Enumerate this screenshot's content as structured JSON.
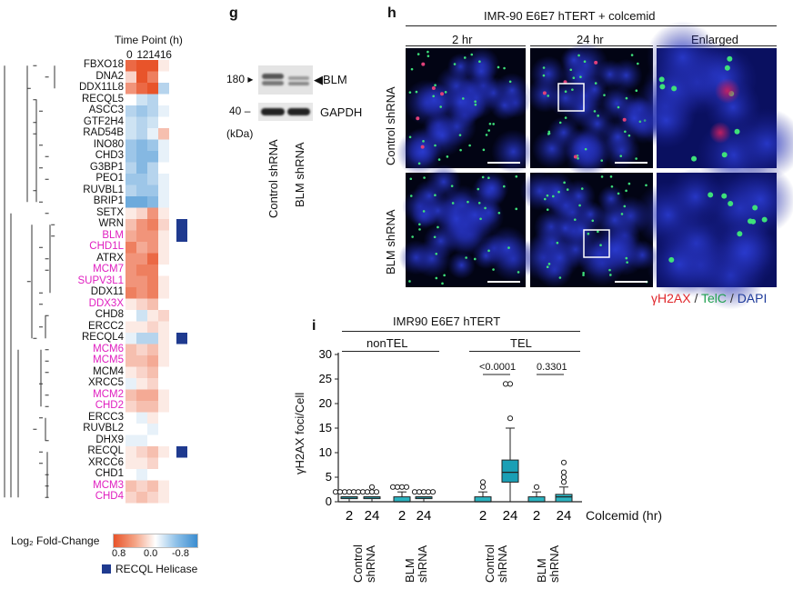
{
  "heatmap": {
    "title": "Time Point (h)",
    "timepoints": [
      "0",
      "12",
      "14",
      "16"
    ],
    "genes": [
      {
        "name": "FBXO18",
        "highlight": false,
        "recql": false
      },
      {
        "name": "DNA2",
        "highlight": false,
        "recql": false
      },
      {
        "name": "DDX11L8",
        "highlight": false,
        "recql": false
      },
      {
        "name": "RECQL5",
        "highlight": false,
        "recql": false
      },
      {
        "name": "ASCC3",
        "highlight": false,
        "recql": false
      },
      {
        "name": "GTF2H4",
        "highlight": false,
        "recql": false
      },
      {
        "name": "RAD54B",
        "highlight": false,
        "recql": false
      },
      {
        "name": "INO80",
        "highlight": false,
        "recql": false
      },
      {
        "name": "CHD3",
        "highlight": false,
        "recql": false
      },
      {
        "name": "G3BP1",
        "highlight": false,
        "recql": false
      },
      {
        "name": "PEO1",
        "highlight": false,
        "recql": false
      },
      {
        "name": "RUVBL1",
        "highlight": false,
        "recql": false
      },
      {
        "name": "BRIP1",
        "highlight": false,
        "recql": false
      },
      {
        "name": "SETX",
        "highlight": false,
        "recql": false
      },
      {
        "name": "WRN",
        "highlight": false,
        "recql": true
      },
      {
        "name": "BLM",
        "highlight": true,
        "recql": true
      },
      {
        "name": "CHD1L",
        "highlight": true,
        "recql": false
      },
      {
        "name": "ATRX",
        "highlight": false,
        "recql": false
      },
      {
        "name": "MCM7",
        "highlight": true,
        "recql": false
      },
      {
        "name": "SUPV3L1",
        "highlight": true,
        "recql": false
      },
      {
        "name": "DDX11",
        "highlight": false,
        "recql": false
      },
      {
        "name": "DDX3X",
        "highlight": true,
        "recql": false
      },
      {
        "name": "CHD8",
        "highlight": false,
        "recql": false
      },
      {
        "name": "ERCC2",
        "highlight": false,
        "recql": false
      },
      {
        "name": "RECQL4",
        "highlight": false,
        "recql": true
      },
      {
        "name": "MCM6",
        "highlight": true,
        "recql": false
      },
      {
        "name": "MCM5",
        "highlight": true,
        "recql": false
      },
      {
        "name": "MCM4",
        "highlight": false,
        "recql": false
      },
      {
        "name": "XRCC5",
        "highlight": false,
        "recql": false
      },
      {
        "name": "MCM2",
        "highlight": true,
        "recql": false
      },
      {
        "name": "CHD2",
        "highlight": true,
        "recql": false
      },
      {
        "name": "ERCC3",
        "highlight": false,
        "recql": false
      },
      {
        "name": "RUVBL2",
        "highlight": false,
        "recql": false
      },
      {
        "name": "DHX9",
        "highlight": false,
        "recql": false
      },
      {
        "name": "RECQL",
        "highlight": false,
        "recql": true
      },
      {
        "name": "XRCC6",
        "highlight": false,
        "recql": false
      },
      {
        "name": "CHD1",
        "highlight": false,
        "recql": false
      },
      {
        "name": "MCM3",
        "highlight": true,
        "recql": false
      },
      {
        "name": "CHD4",
        "highlight": true,
        "recql": false
      }
    ],
    "values": [
      [
        0.7,
        0.9,
        0.8,
        0.1
      ],
      [
        0.2,
        0.8,
        0.6,
        0.0
      ],
      [
        0.5,
        0.7,
        0.8,
        -0.3
      ],
      [
        0.0,
        -0.2,
        -0.3,
        0.0
      ],
      [
        -0.3,
        -0.4,
        -0.3,
        -0.1
      ],
      [
        -0.2,
        -0.3,
        -0.2,
        0.0
      ],
      [
        -0.2,
        -0.3,
        -0.1,
        0.3
      ],
      [
        -0.4,
        -0.5,
        -0.4,
        -0.1
      ],
      [
        -0.4,
        -0.5,
        -0.5,
        -0.1
      ],
      [
        -0.3,
        -0.5,
        -0.3,
        0.0
      ],
      [
        -0.4,
        -0.4,
        -0.3,
        -0.1
      ],
      [
        -0.3,
        -0.4,
        -0.4,
        -0.1
      ],
      [
        -0.6,
        -0.6,
        -0.5,
        -0.1
      ],
      [
        0.1,
        0.2,
        0.5,
        0.1
      ],
      [
        0.3,
        0.5,
        0.6,
        0.2
      ],
      [
        0.4,
        0.5,
        0.5,
        0.1
      ],
      [
        0.6,
        0.4,
        0.5,
        0.1
      ],
      [
        0.5,
        0.5,
        0.7,
        0.1
      ],
      [
        0.5,
        0.6,
        0.6,
        0.0
      ],
      [
        0.5,
        0.5,
        0.6,
        0.1
      ],
      [
        0.6,
        0.5,
        0.6,
        0.1
      ],
      [
        0.1,
        0.2,
        0.3,
        0.0
      ],
      [
        0.0,
        -0.2,
        0.1,
        0.2
      ],
      [
        0.1,
        0.1,
        0.2,
        0.1
      ],
      [
        -0.1,
        -0.3,
        -0.3,
        0.1
      ],
      [
        0.3,
        0.2,
        0.3,
        0.1
      ],
      [
        0.3,
        0.3,
        0.4,
        0.1
      ],
      [
        0.1,
        0.2,
        0.3,
        0.0
      ],
      [
        -0.1,
        0.1,
        0.2,
        0.0
      ],
      [
        0.3,
        0.4,
        0.4,
        0.1
      ],
      [
        0.2,
        0.3,
        0.3,
        0.1
      ],
      [
        0.0,
        -0.1,
        0.1,
        0.0
      ],
      [
        0.0,
        0.0,
        -0.1,
        0.0
      ],
      [
        -0.1,
        -0.1,
        0.0,
        0.0
      ],
      [
        0.1,
        0.2,
        0.3,
        0.1
      ],
      [
        0.1,
        0.1,
        0.2,
        0.0
      ],
      [
        0.0,
        -0.1,
        0.0,
        0.0
      ],
      [
        0.3,
        0.2,
        0.3,
        0.1
      ],
      [
        0.2,
        0.3,
        0.2,
        0.1
      ]
    ],
    "legend_title": "Log₂ Fold-Change",
    "legend_ticks": [
      "0.8",
      "0.0",
      "-0.8"
    ],
    "recql_legend": "RECQL Helicase",
    "colors": {
      "pos": "#e8542a",
      "neg": "#3b8dd0",
      "mid": "#ffffff",
      "highlight": "#e020c0",
      "recql": "#1f3a8f"
    }
  },
  "panel_g": {
    "label": "g",
    "mw_top": "180",
    "mw_bottom": "40",
    "unit": "(kDa)",
    "band_top": "BLM",
    "band_bottom": "GAPDH",
    "lanes": [
      "Control shRNA",
      "BLM shRNA"
    ]
  },
  "panel_h": {
    "label": "h",
    "title": "IMR-90 E6E7 hTERT + colcemid",
    "columns": [
      "2 hr",
      "24 hr",
      "Enlarged"
    ],
    "rows": [
      "Control shRNA",
      "BLM shRNA"
    ],
    "legend": {
      "a": "γH2AX",
      "sep1": " / ",
      "b": "TelC",
      "sep2": " / ",
      "c": "DAPI"
    },
    "legend_colors": {
      "a": "#e0262b",
      "b": "#20a050",
      "c": "#1d3a9a"
    }
  },
  "panel_i": {
    "label": "i",
    "title": "IMR90 E6E7 hTERT",
    "group_nontel": "nonTEL",
    "group_tel": "TEL",
    "p_values": [
      "<0.0001",
      "0.3301"
    ],
    "axis_colcemid": "Colcemid (hr)",
    "shrna_labels": [
      "Control shRNA",
      "BLM shRNA",
      "Control shRNA",
      "BLM shRNA"
    ]
  },
  "chart_data": {
    "type": "box",
    "title": "IMR90 E6E7 hTERT",
    "ylabel": "γH2AX foci/Cell",
    "xlabel": "Colcemid (hr)",
    "ylim": [
      0,
      30
    ],
    "yticks": [
      0,
      5,
      10,
      15,
      20,
      25,
      30
    ],
    "boxes": [
      {
        "group": "nonTEL",
        "shrna": "Control shRNA",
        "time": "2",
        "q1": 1,
        "median": 1,
        "q3": 1,
        "whisker_low": 0,
        "whisker_high": 1,
        "outliers": [
          2,
          2,
          2,
          2,
          2,
          2,
          2
        ],
        "color": "#2bb3c0"
      },
      {
        "group": "nonTEL",
        "shrna": "Control shRNA",
        "time": "24",
        "q1": 1,
        "median": 1,
        "q3": 1,
        "whisker_low": 0,
        "whisker_high": 1,
        "outliers": [
          2,
          2,
          2,
          3
        ],
        "color": "#2bb3c0"
      },
      {
        "group": "nonTEL",
        "shrna": "BLM shRNA",
        "time": "2",
        "q1": 0,
        "median": 0,
        "q3": 1,
        "whisker_low": 0,
        "whisker_high": 2,
        "outliers": [
          3,
          3,
          3,
          3
        ],
        "color": "#2bb3c0"
      },
      {
        "group": "nonTEL",
        "shrna": "BLM shRNA",
        "time": "24",
        "q1": 1,
        "median": 1,
        "q3": 1,
        "whisker_low": 0,
        "whisker_high": 1,
        "outliers": [
          2,
          2,
          2,
          2,
          2
        ],
        "color": "#2bb3c0"
      },
      {
        "group": "TEL",
        "shrna": "Control shRNA",
        "time": "2",
        "q1": 0,
        "median": 0,
        "q3": 1,
        "whisker_low": 0,
        "whisker_high": 2,
        "outliers": [
          3,
          4
        ],
        "color": "#2bb3c0"
      },
      {
        "group": "TEL",
        "shrna": "Control shRNA",
        "time": "24",
        "q1": 4,
        "median": 6,
        "q3": 8.5,
        "whisker_low": 0,
        "whisker_high": 15,
        "outliers": [
          17,
          24,
          24
        ],
        "color": "#1a9fb5"
      },
      {
        "group": "TEL",
        "shrna": "BLM shRNA",
        "time": "2",
        "q1": 0,
        "median": 0,
        "q3": 1,
        "whisker_low": 0,
        "whisker_high": 2,
        "outliers": [
          3
        ],
        "color": "#2bb3c0"
      },
      {
        "group": "TEL",
        "shrna": "BLM shRNA",
        "time": "24",
        "q1": 0,
        "median": 1,
        "q3": 1.5,
        "whisker_low": 0,
        "whisker_high": 3,
        "outliers": [
          4,
          5,
          6,
          8
        ],
        "color": "#2bb3c0"
      }
    ],
    "comparisons": [
      {
        "between": [
          "TEL Control 2",
          "TEL Control 24"
        ],
        "p": "<0.0001"
      },
      {
        "between": [
          "TEL BLM 2",
          "TEL BLM 24"
        ],
        "p": "0.3301"
      }
    ]
  }
}
